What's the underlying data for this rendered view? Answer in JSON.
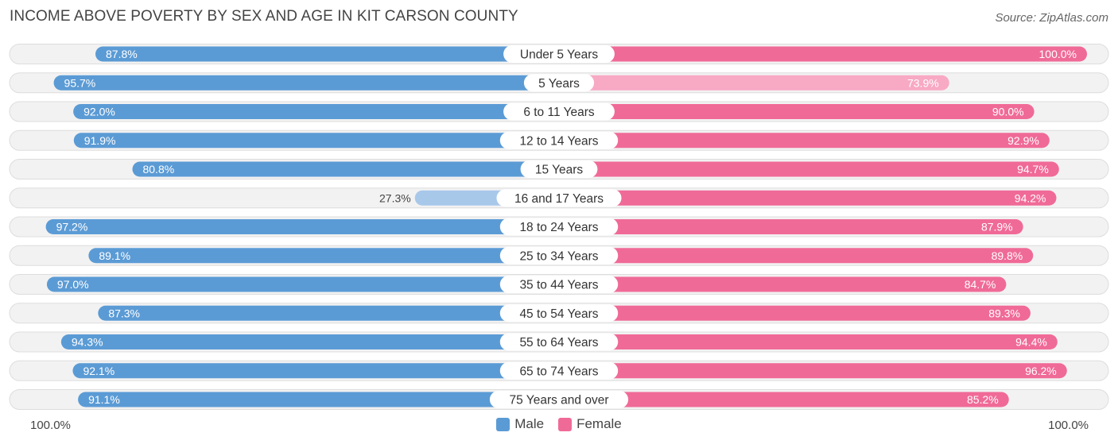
{
  "title": "INCOME ABOVE POVERTY BY SEX AND AGE IN KIT CARSON COUNTY",
  "source": "Source: ZipAtlas.com",
  "colors": {
    "male_strong": "#5b9bd5",
    "male_light": "#a8c8ea",
    "female_strong": "#f06a97",
    "female_light": "#f8a9c4",
    "row_bg": "#f2f2f2",
    "row_border": "#dddddd"
  },
  "legend": {
    "male": "Male",
    "female": "Female"
  },
  "axis": {
    "left_label": "100.0%",
    "right_label": "100.0%"
  },
  "chart_data": {
    "type": "bar",
    "orientation": "horizontal-diverging",
    "title": "INCOME ABOVE POVERTY BY SEX AND AGE IN KIT CARSON COUNTY",
    "xlim": [
      0,
      100
    ],
    "categories": [
      "Under 5 Years",
      "5 Years",
      "6 to 11 Years",
      "12 to 14 Years",
      "15 Years",
      "16 and 17 Years",
      "18 to 24 Years",
      "25 to 34 Years",
      "35 to 44 Years",
      "45 to 54 Years",
      "55 to 64 Years",
      "65 to 74 Years",
      "75 Years and over"
    ],
    "series": [
      {
        "name": "Male",
        "values": [
          87.8,
          95.7,
          92.0,
          91.9,
          80.8,
          27.3,
          97.2,
          89.1,
          97.0,
          87.3,
          94.3,
          92.1,
          91.1
        ],
        "labels": [
          "87.8%",
          "95.7%",
          "92.0%",
          "91.9%",
          "80.8%",
          "27.3%",
          "97.2%",
          "89.1%",
          "97.0%",
          "87.3%",
          "94.3%",
          "92.1%",
          "91.1%"
        ]
      },
      {
        "name": "Female",
        "values": [
          100.0,
          73.9,
          90.0,
          92.9,
          94.7,
          94.2,
          87.9,
          89.8,
          84.7,
          89.3,
          94.4,
          96.2,
          85.2
        ],
        "labels": [
          "100.0%",
          "73.9%",
          "90.0%",
          "92.9%",
          "94.7%",
          "94.2%",
          "87.9%",
          "89.8%",
          "84.7%",
          "89.3%",
          "94.4%",
          "96.2%",
          "85.2%"
        ]
      }
    ]
  }
}
